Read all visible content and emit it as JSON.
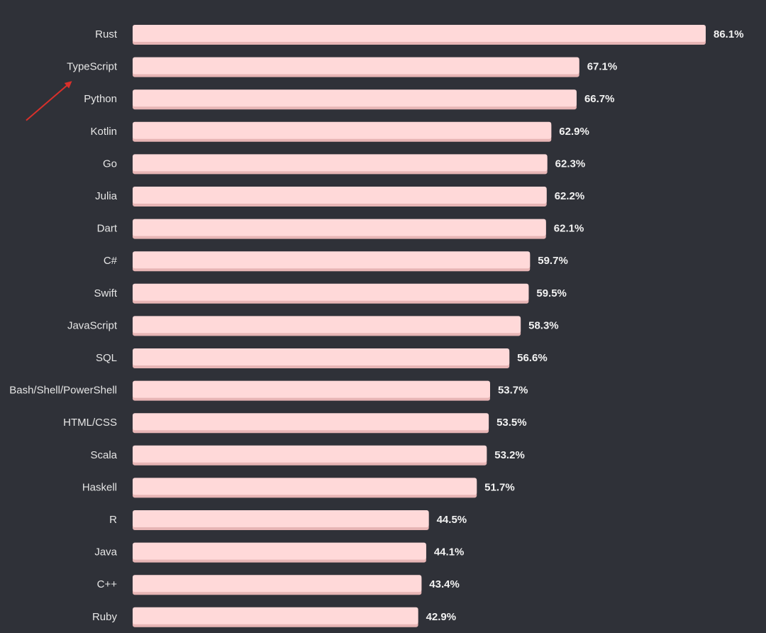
{
  "chart_data": {
    "type": "bar",
    "orientation": "horizontal",
    "categories": [
      "Rust",
      "TypeScript",
      "Python",
      "Kotlin",
      "Go",
      "Julia",
      "Dart",
      "C#",
      "Swift",
      "JavaScript",
      "SQL",
      "Bash/Shell/PowerShell",
      "HTML/CSS",
      "Scala",
      "Haskell",
      "R",
      "Java",
      "C++",
      "Ruby"
    ],
    "values": [
      86.1,
      67.1,
      66.7,
      62.9,
      62.3,
      62.2,
      62.1,
      59.7,
      59.5,
      58.3,
      56.6,
      53.7,
      53.5,
      53.2,
      51.7,
      44.5,
      44.1,
      43.4,
      42.9
    ],
    "value_labels": [
      "86.1%",
      "67.1%",
      "66.7%",
      "62.9%",
      "62.3%",
      "62.2%",
      "62.1%",
      "59.7%",
      "59.5%",
      "58.3%",
      "56.6%",
      "53.7%",
      "53.5%",
      "53.2%",
      "51.7%",
      "44.5%",
      "44.1%",
      "43.4%",
      "42.9%"
    ],
    "title": "",
    "xlabel": "",
    "ylabel": "",
    "xlim": [
      0,
      86.1
    ],
    "grid": false,
    "annotation": {
      "type": "arrow",
      "points_to": "TypeScript",
      "color": "#d9302b"
    },
    "colors": {
      "background": "#2f3138",
      "bar": "#ffd9d9",
      "bar_shadow": "#e7b5b5",
      "label": "#e6e6e6",
      "value_label": "#f2f2f2"
    }
  }
}
